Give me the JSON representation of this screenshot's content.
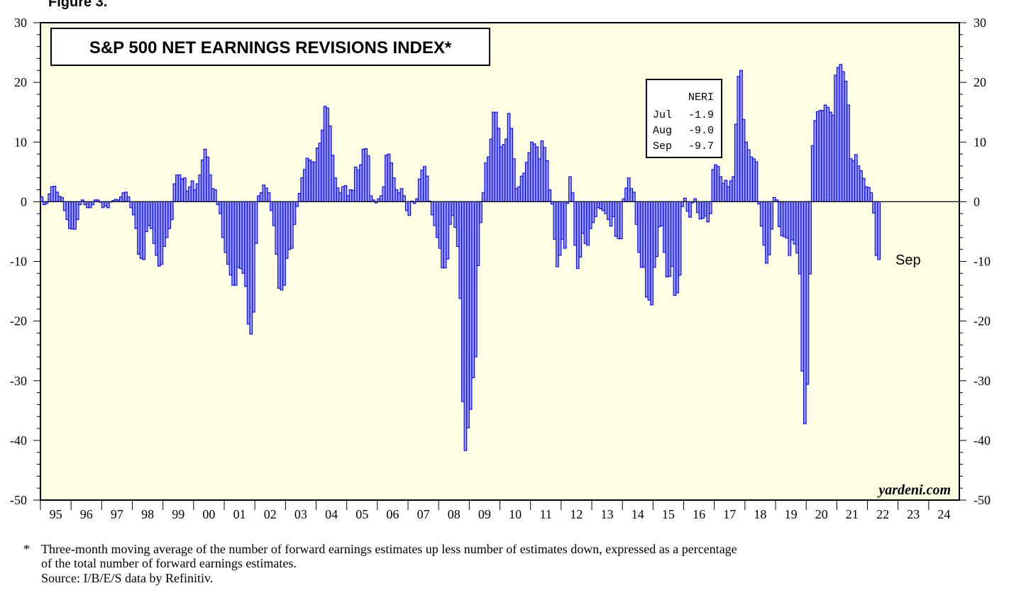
{
  "figure_label": "Figure 3.",
  "chart_data": {
    "type": "bar",
    "title": "S&P 500 NET EARNINGS REVISIONS INDEX*",
    "series_name": "NERI",
    "start_month": "1995-01",
    "frequency": "monthly",
    "ylim": [
      -50,
      30
    ],
    "yticks": [
      30,
      20,
      10,
      0,
      -10,
      -20,
      -30,
      -40,
      -50
    ],
    "xtick_labels": [
      "95",
      "96",
      "97",
      "98",
      "99",
      "00",
      "01",
      "02",
      "03",
      "04",
      "05",
      "06",
      "07",
      "08",
      "09",
      "10",
      "11",
      "12",
      "13",
      "14",
      "15",
      "16",
      "17",
      "18",
      "19",
      "20",
      "21",
      "22",
      "23",
      "24"
    ],
    "values": [
      0.8,
      -0.5,
      -0.3,
      1.3,
      2.5,
      2.6,
      1.6,
      0.9,
      0.7,
      -1.5,
      -3,
      -4.5,
      -4.6,
      -4.6,
      -3,
      -0.5,
      0.3,
      -0.5,
      -1,
      -1,
      -0.5,
      0.3,
      0.3,
      -0.1,
      -1,
      -0.7,
      -1,
      0,
      0.2,
      0.4,
      0.3,
      0.8,
      1.5,
      1.6,
      0.8,
      -1,
      -2.2,
      -4.5,
      -8.8,
      -9.5,
      -9.7,
      -5,
      -4,
      -4.5,
      -7,
      -9,
      -10.8,
      -10.5,
      -7.5,
      -6,
      -4.5,
      -3,
      3,
      4.5,
      4.5,
      3.8,
      4,
      1.8,
      2.5,
      3.5,
      2,
      3,
      4.5,
      7,
      8.8,
      7.5,
      4.5,
      2.2,
      2,
      -0.5,
      -2,
      -6,
      -8.5,
      -10.5,
      -12.3,
      -14,
      -14,
      -11,
      -11.2,
      -12,
      -14.2,
      -20.5,
      -22.2,
      -18.5,
      -7,
      1,
      1.5,
      2.8,
      2.3,
      1.5,
      -1.5,
      -4,
      -8.8,
      -14.5,
      -14.8,
      -14,
      -9.5,
      -8,
      -7.8,
      -3.8,
      -0.8,
      1.4,
      4,
      5.4,
      7.3,
      7,
      6.7,
      6.6,
      9,
      9.8,
      12,
      16,
      15.7,
      12.7,
      7.8,
      4,
      2.3,
      1.5,
      2.5,
      2.7,
      1,
      2,
      1.9,
      5.8,
      5.3,
      6.2,
      8.8,
      8.9,
      7.7,
      1,
      0.3,
      -0.2,
      0.5,
      1,
      2.5,
      7.8,
      8,
      6.5,
      4,
      2,
      1.5,
      2.2,
      1,
      -1.5,
      -2.3,
      0.1,
      -0.3,
      0.5,
      3.8,
      5.3,
      5.9,
      4.3,
      0.1,
      -2.2,
      -4,
      -6,
      -7.8,
      -11.1,
      -11.1,
      -9.6,
      -3.8,
      -2.3,
      -4.3,
      -7.5,
      -16.2,
      -33.5,
      -41.7,
      -37.9,
      -34.8,
      -29.5,
      -26,
      -10.7,
      -3.5,
      1.5,
      6.5,
      7.5,
      10.5,
      15,
      15,
      12.3,
      9.2,
      9.6,
      10.5,
      14.8,
      12.3,
      7.2,
      2.2,
      2.5,
      4.3,
      4.8,
      6.6,
      8.2,
      10,
      9.7,
      9.2,
      7.2,
      10.2,
      9.1,
      6.9,
      2,
      -0.4,
      -6.3,
      -10.9,
      -9,
      -6.3,
      -7.8,
      -0.3,
      4.2,
      1.5,
      -7.3,
      -11.2,
      -9.3,
      -5.3,
      -7,
      -7.3,
      -4.5,
      -3.5,
      -2.5,
      -1,
      -1.2,
      -1.5,
      -2,
      -3,
      -4.1,
      -2.5,
      -5.8,
      -6.2,
      -6.2,
      0.5,
      2.3,
      4,
      2.2,
      1.6,
      -3.8,
      -8.5,
      -11,
      -11,
      -16,
      -16.5,
      -17.3,
      -11,
      -9.2,
      -4.2,
      -4,
      -8.5,
      -12.6,
      -12.5,
      -10.8,
      -15.7,
      -15.3,
      -12.3,
      -0.8,
      0.6,
      -1.6,
      -2.6,
      -0.2,
      0.5,
      -1.8,
      -2.9,
      -2.8,
      -2.4,
      -3.4,
      -2,
      5.4,
      6.2,
      5.9,
      4.2,
      3.1,
      3.6,
      2.5,
      3.5,
      4.2,
      13,
      21,
      22,
      13.8,
      10,
      8.7,
      7.5,
      7.2,
      6.7,
      -0.4,
      -4.1,
      -7.3,
      -10.3,
      -8.9,
      -4.6,
      0.7,
      0.3,
      -4.2,
      -5.7,
      -5.9,
      -6.1,
      -9,
      -6.4,
      -7.1,
      -8.6,
      -12.1,
      -28.4,
      -37.2,
      -30.6,
      -12.1,
      9.4,
      13.6,
      15.1,
      15.3,
      15.3,
      16.2,
      15.8,
      15,
      14.5,
      21.2,
      22.5,
      23,
      21.8,
      20.2,
      16.2,
      7.2,
      6.9,
      7.9,
      6.0,
      5.2,
      3.9,
      2.5,
      2.4,
      1.5,
      -1.9,
      -9.0,
      -9.7
    ],
    "legend_box": {
      "header": "NERI",
      "rows": [
        {
          "month": "Jul",
          "value": "-1.9"
        },
        {
          "month": "Aug",
          "value": "-9.0"
        },
        {
          "month": "Sep",
          "value": "-9.7"
        }
      ]
    },
    "annotation": "Sep",
    "watermark": "yardeni.com",
    "colors": {
      "background": "#ffffe4",
      "bar_fill": "#9a9aff",
      "bar_stroke": "#0000ff"
    }
  },
  "footnote": {
    "marker": "*",
    "line1": "Three-month moving average of the number of forward earnings estimates up less number of estimates down, expressed as a percentage",
    "line2": "of the total number of forward earnings estimates.",
    "source": "Source: I/B/E/S data by Refinitiv."
  }
}
